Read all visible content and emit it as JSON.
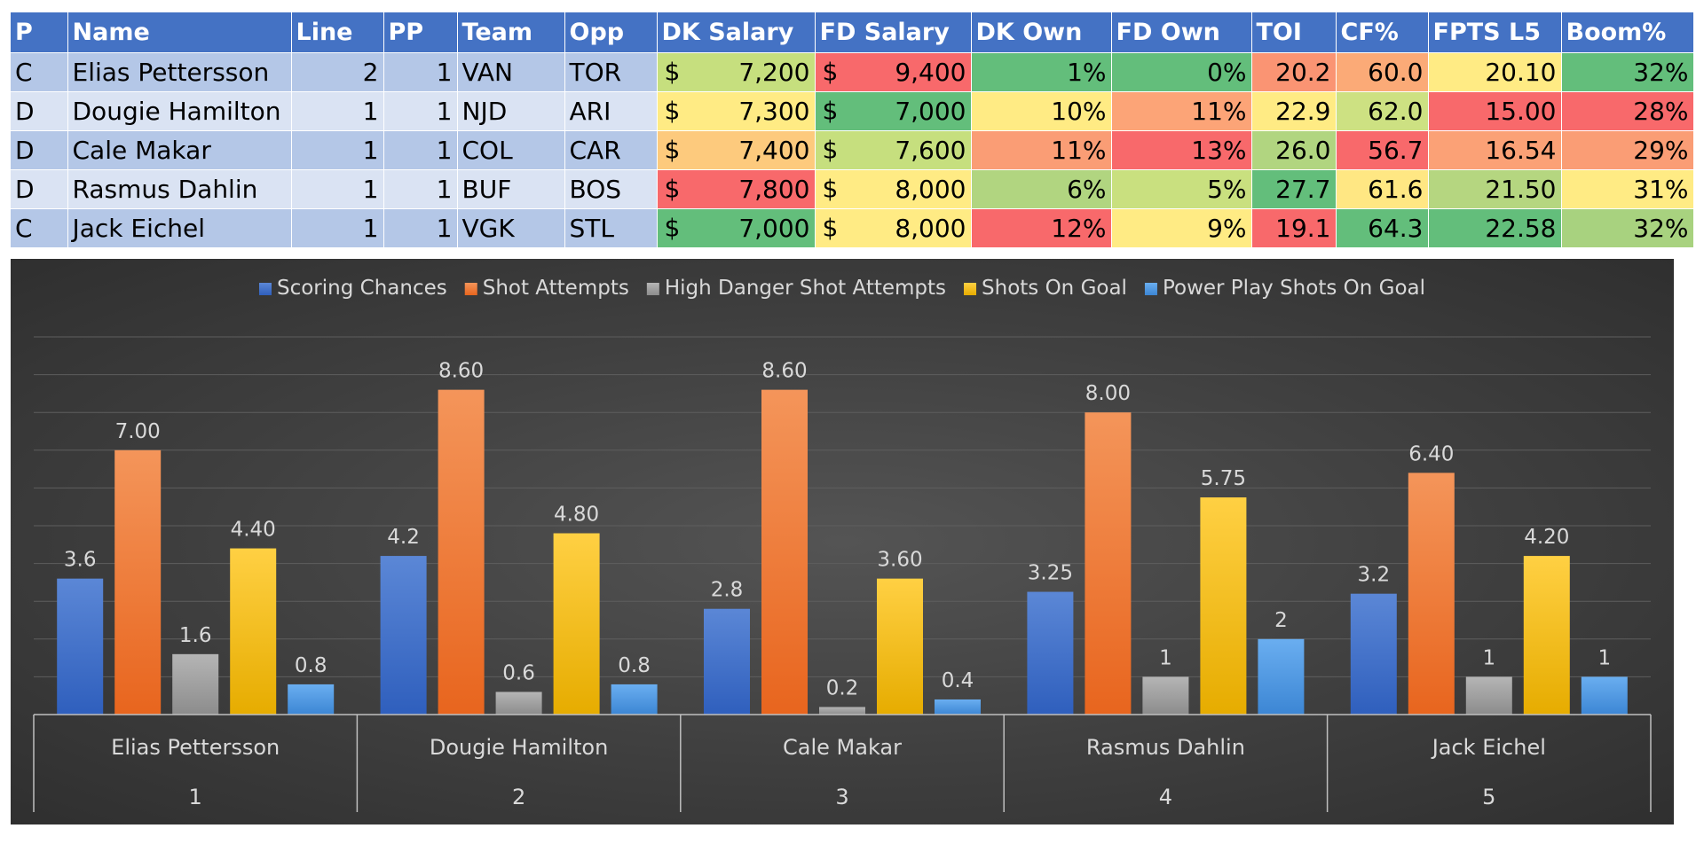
{
  "table": {
    "headers": [
      "P",
      "Name",
      "Line",
      "PP",
      "Team",
      "Opp",
      "DK Salary",
      "FD Salary",
      "DK Own",
      "FD Own",
      "TOI",
      "CF%",
      "FPTS L5",
      "Boom%"
    ],
    "rows": [
      {
        "p": "C",
        "name": "Elias Pettersson",
        "line": "2",
        "pp": "1",
        "team": "VAN",
        "opp": "TOR",
        "dk_salary": "7,200",
        "fd_salary": "9,400",
        "dk_own": "1%",
        "fd_own": "0%",
        "toi": "20.2",
        "cf": "60.0",
        "fpts": "20.10",
        "boom": "32%"
      },
      {
        "p": "D",
        "name": "Dougie Hamilton",
        "line": "1",
        "pp": "1",
        "team": "NJD",
        "opp": "ARI",
        "dk_salary": "7,300",
        "fd_salary": "7,000",
        "dk_own": "10%",
        "fd_own": "11%",
        "toi": "22.9",
        "cf": "62.0",
        "fpts": "15.00",
        "boom": "28%"
      },
      {
        "p": "D",
        "name": "Cale Makar",
        "line": "1",
        "pp": "1",
        "team": "COL",
        "opp": "CAR",
        "dk_salary": "7,400",
        "fd_salary": "7,600",
        "dk_own": "11%",
        "fd_own": "13%",
        "toi": "26.0",
        "cf": "56.7",
        "fpts": "16.54",
        "boom": "29%"
      },
      {
        "p": "D",
        "name": "Rasmus Dahlin",
        "line": "1",
        "pp": "1",
        "team": "BUF",
        "opp": "BOS",
        "dk_salary": "7,800",
        "fd_salary": "8,000",
        "dk_own": "6%",
        "fd_own": "5%",
        "toi": "27.7",
        "cf": "61.6",
        "fpts": "21.50",
        "boom": "31%"
      },
      {
        "p": "C",
        "name": "Jack Eichel",
        "line": "1",
        "pp": "1",
        "team": "VGK",
        "opp": "STL",
        "dk_salary": "7,000",
        "fd_salary": "8,000",
        "dk_own": "12%",
        "fd_own": "9%",
        "toi": "19.1",
        "cf": "64.3",
        "fpts": "22.58",
        "boom": "32%"
      }
    ],
    "currency_symbol": "$",
    "cell_colors": {
      "dk_salary": [
        "#c6df7e",
        "#ffeb84",
        "#fdca7d",
        "#f8696b",
        "#63be7b"
      ],
      "fd_salary": [
        "#f8696b",
        "#63be7b",
        "#c6df7e",
        "#ffeb84",
        "#ffeb84"
      ],
      "dk_own": [
        "#63be7b",
        "#ffeb84",
        "#fa9d75",
        "#b1d580",
        "#f8696b"
      ],
      "fd_own": [
        "#63be7b",
        "#fca477",
        "#f8696b",
        "#c9e07f",
        "#ffeb84"
      ],
      "toi": [
        "#fa9473",
        "#ffeb84",
        "#b1d580",
        "#63be7b",
        "#f8696b"
      ],
      "cf": [
        "#fbaa77",
        "#cde182",
        "#f8696b",
        "#ffe783",
        "#63be7b"
      ],
      "fpts": [
        "#ffeb84",
        "#f8696b",
        "#fba176",
        "#b5d680",
        "#63be7b"
      ],
      "boom": [
        "#63be7b",
        "#f8696b",
        "#fa9d75",
        "#ffeb84",
        "#a8d27f"
      ]
    }
  },
  "chart_data": {
    "type": "bar",
    "categories": [
      "Elias Pettersson",
      "Dougie Hamilton",
      "Cale Makar",
      "Rasmus Dahlin",
      "Jack Eichel"
    ],
    "category_numbers": [
      "1",
      "2",
      "3",
      "4",
      "5"
    ],
    "series": [
      {
        "name": "Scoring Chances",
        "values": [
          3.6,
          4.2,
          2.8,
          3.25,
          3.2
        ],
        "labels": [
          "3.6",
          "4.2",
          "2.8",
          "3.25",
          "3.2"
        ],
        "color_top": "#5b87d6",
        "color_bottom": "#2f5fbd"
      },
      {
        "name": "Shot Attempts",
        "values": [
          7.0,
          8.6,
          8.6,
          8.0,
          6.4
        ],
        "labels": [
          "7.00",
          "8.60",
          "8.60",
          "8.00",
          "6.40"
        ],
        "color_top": "#f4955a",
        "color_bottom": "#e8651e"
      },
      {
        "name": "High Danger Shot Attempts",
        "values": [
          1.6,
          0.6,
          0.2,
          1,
          1
        ],
        "labels": [
          "1.6",
          "0.6",
          "0.2",
          "1",
          "1"
        ],
        "color_top": "#b5b5b5",
        "color_bottom": "#8c8c8c"
      },
      {
        "name": "Shots On Goal",
        "values": [
          4.4,
          4.8,
          3.6,
          5.75,
          4.2
        ],
        "labels": [
          "4.40",
          "4.80",
          "3.60",
          "5.75",
          "4.20"
        ],
        "color_top": "#ffd043",
        "color_bottom": "#e6ac00"
      },
      {
        "name": "Power Play Shots On Goal",
        "values": [
          0.8,
          0.8,
          0.4,
          2,
          1
        ],
        "labels": [
          "0.8",
          "0.8",
          "0.4",
          "2",
          "1"
        ],
        "color_top": "#6aaef0",
        "color_bottom": "#3c86d4"
      }
    ],
    "ylim": [
      0,
      10
    ],
    "grid": true,
    "legend_position": "top"
  }
}
